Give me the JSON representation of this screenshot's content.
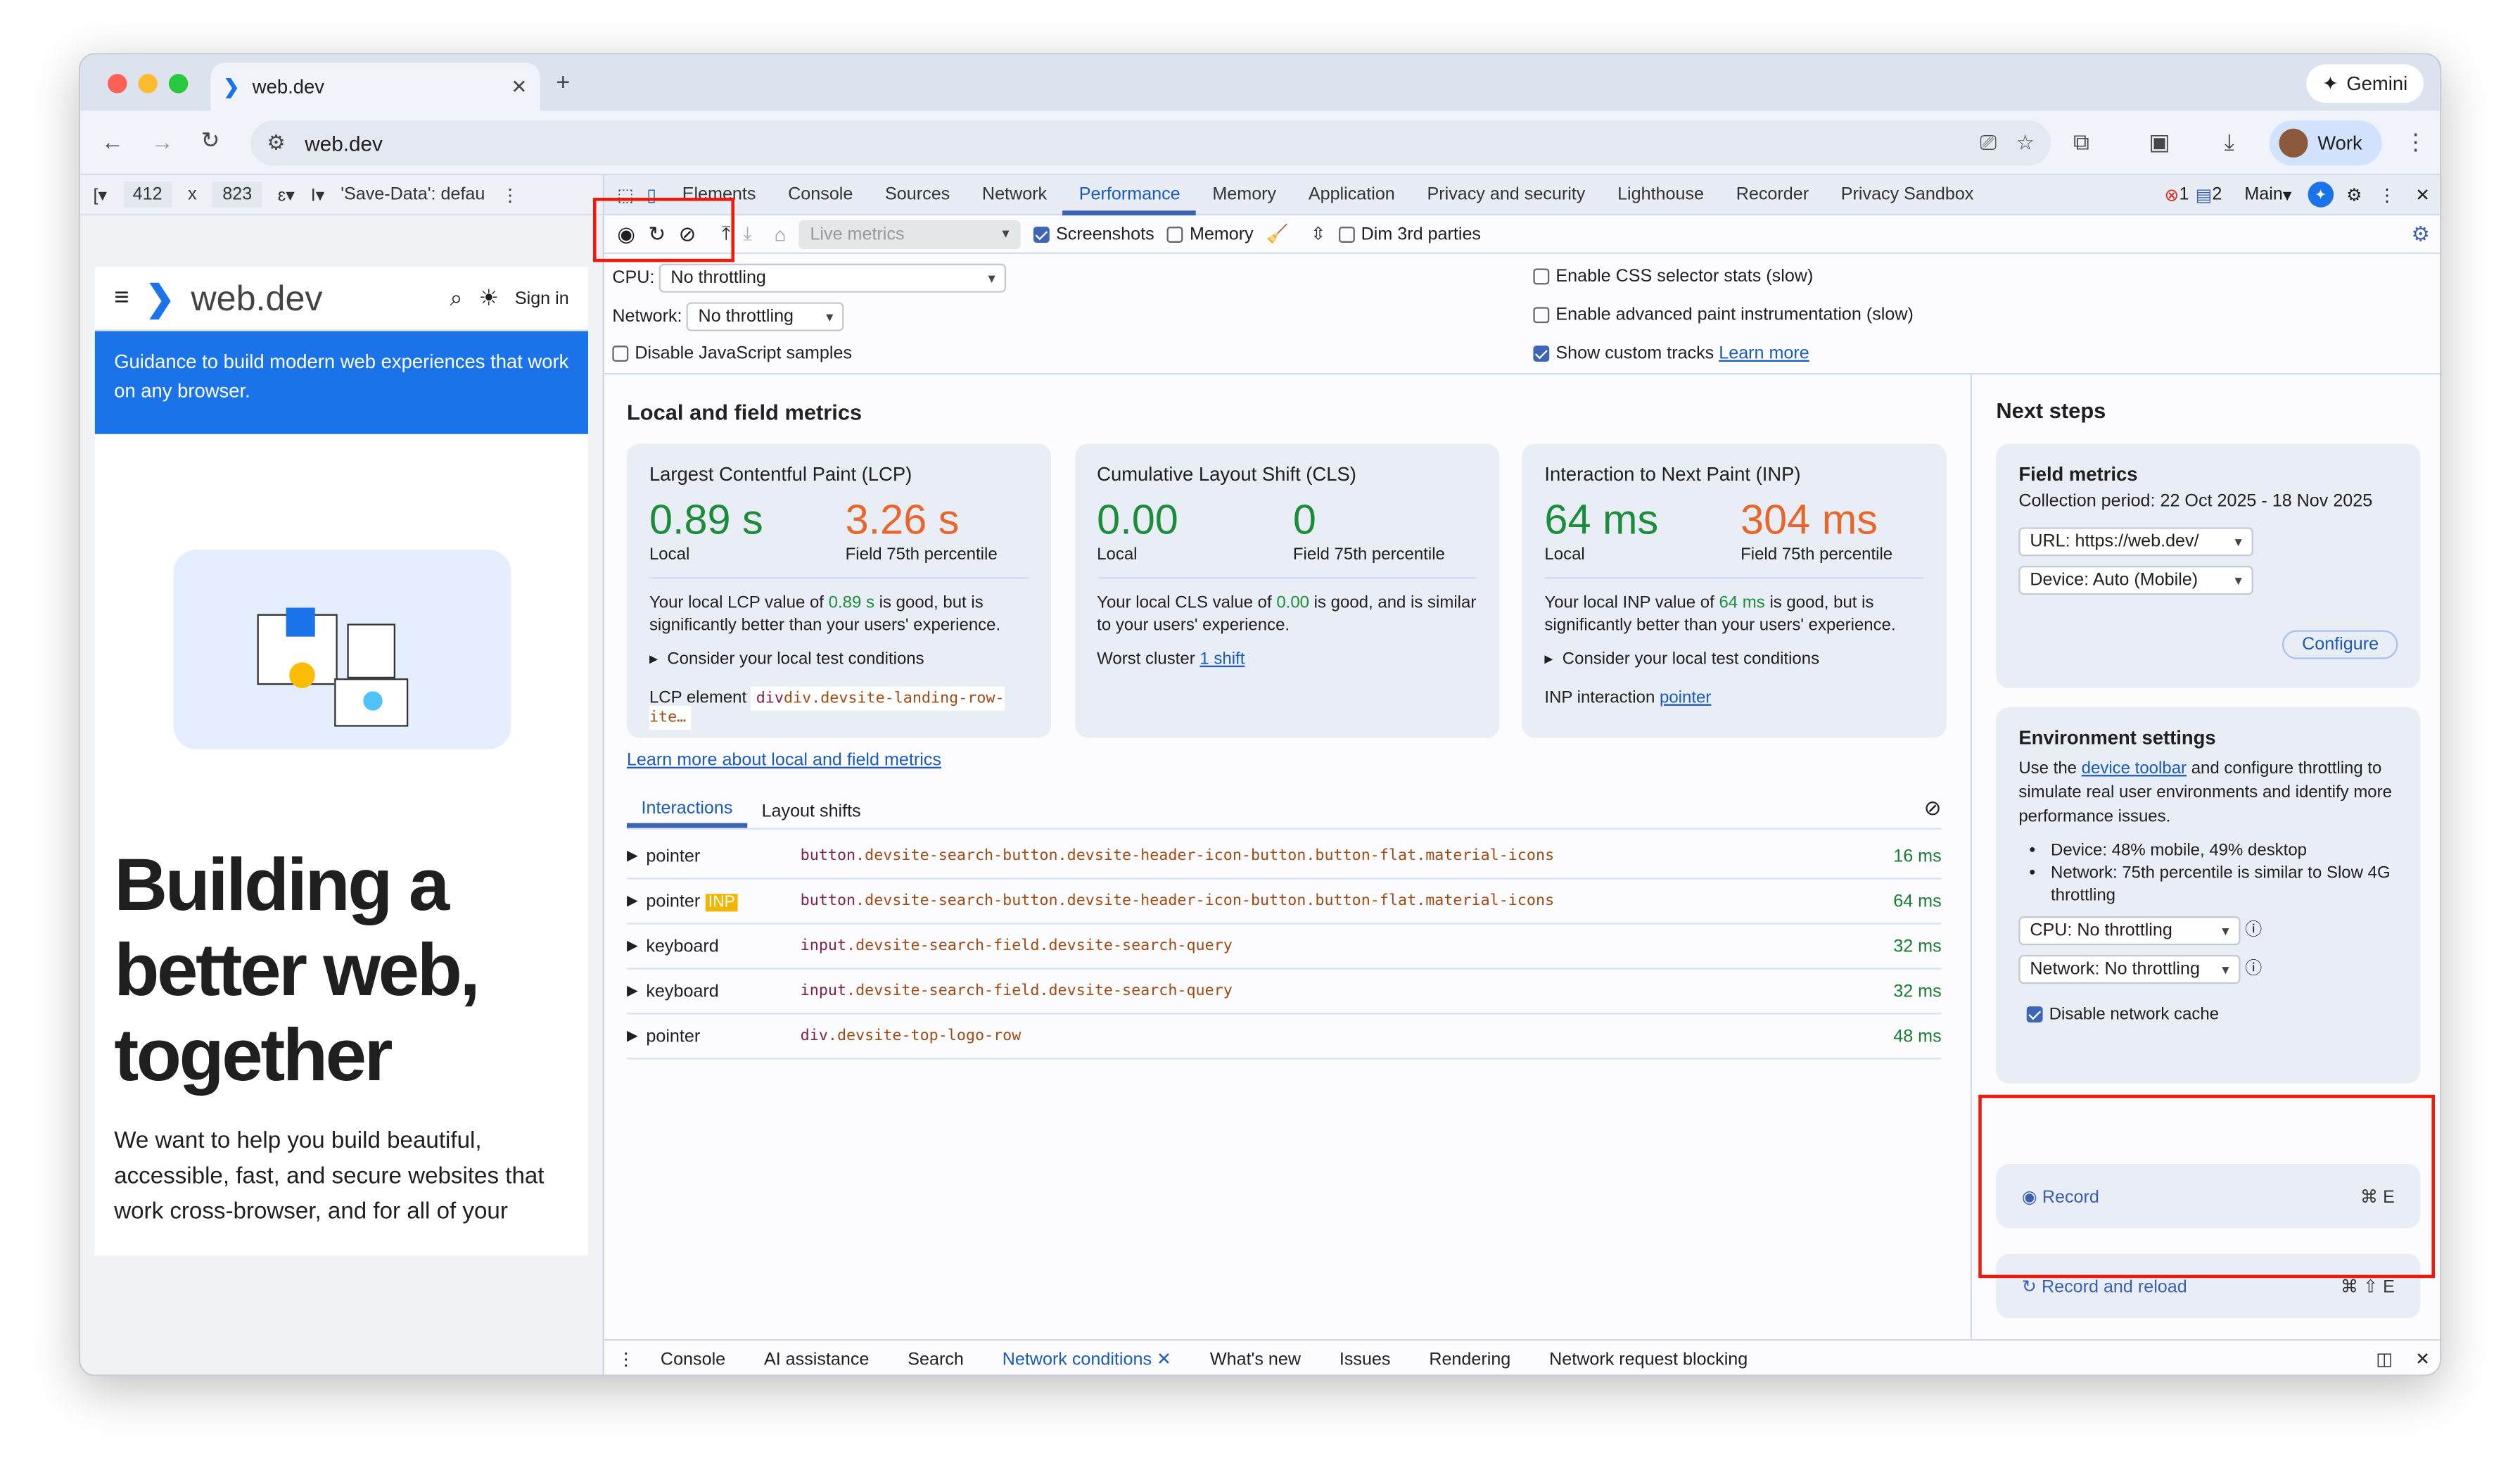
{
  "browser": {
    "tab_title": "web.dev",
    "gemini_label": "Gemini",
    "url": "web.dev",
    "profile_label": "Work"
  },
  "device_toolbar": {
    "width": "412",
    "x": "x",
    "height": "823",
    "save_data": "'Save-Data': defau"
  },
  "devtools": {
    "tabs": [
      "Elements",
      "Console",
      "Sources",
      "Network",
      "Performance",
      "Memory",
      "Application",
      "Privacy and security",
      "Lighthouse",
      "Recorder",
      "Privacy Sandbox"
    ],
    "active_tab": "Performance",
    "errors": "1",
    "messages": "2",
    "context": "Main",
    "toolbar": {
      "live_metrics": "Live metrics",
      "screenshots": "Screenshots",
      "memory": "Memory",
      "dim_3rd": "Dim 3rd parties",
      "screenshots_checked": true,
      "memory_checked": false,
      "dim_checked": false
    },
    "settings": {
      "cpu_label": "CPU:",
      "cpu_value": "No throttling",
      "network_label": "Network:",
      "network_value": "No throttling",
      "disable_js": "Disable JavaScript samples",
      "css_stats": "Enable CSS selector stats (slow)",
      "paint": "Enable advanced paint instrumentation (slow)",
      "custom_tracks": "Show custom tracks",
      "learn_more": "Learn more"
    },
    "main": {
      "heading": "Local and field metrics",
      "cards": [
        {
          "title": "Largest Contentful Paint (LCP)",
          "local": "0.89 s",
          "field": "3.26 s",
          "local_label": "Local",
          "field_label": "Field 75th percentile",
          "desc_pre": "Your local LCP value of ",
          "desc_val": "0.89 s",
          "desc_post": " is good, but is significantly better than your users' experience.",
          "consider": "Consider your local test conditions",
          "extra_label": "LCP element",
          "extra_value": "div.devsite-landing-row-ite…"
        },
        {
          "title": "Cumulative Layout Shift (CLS)",
          "local": "0.00",
          "field": "0",
          "local_label": "Local",
          "field_label": "Field 75th percentile",
          "desc_pre": "Your local CLS value of ",
          "desc_val": "0.00",
          "desc_post": " is good, and is similar to your users' experience.",
          "extra_label": "Worst cluster",
          "extra_value": "1 shift"
        },
        {
          "title": "Interaction to Next Paint (INP)",
          "local": "64 ms",
          "field": "304 ms",
          "local_label": "Local",
          "field_label": "Field 75th percentile",
          "desc_pre": "Your local INP value of ",
          "desc_val": "64 ms",
          "desc_post": " is good, but is significantly better than your users' experience.",
          "consider": "Consider your local test conditions",
          "extra_label": "INP interaction",
          "extra_value": "pointer"
        }
      ],
      "learn_link": "Learn more about local and field metrics",
      "subtabs": [
        "Interactions",
        "Layout shifts"
      ],
      "interactions": [
        {
          "type": "pointer",
          "tag": "button",
          "selector": ".devsite-search-button.devsite-header-icon-button.button-flat.material-icons",
          "time": "16 ms",
          "badge": ""
        },
        {
          "type": "pointer",
          "tag": "button",
          "selector": ".devsite-search-button.devsite-header-icon-button.button-flat.material-icons",
          "time": "64 ms",
          "badge": "INP"
        },
        {
          "type": "keyboard",
          "tag": "input",
          "selector": ".devsite-search-field.devsite-search-query",
          "time": "32 ms",
          "badge": ""
        },
        {
          "type": "keyboard",
          "tag": "input",
          "selector": ".devsite-search-field.devsite-search-query",
          "time": "32 ms",
          "badge": ""
        },
        {
          "type": "pointer",
          "tag": "div",
          "selector": ".devsite-top-logo-row",
          "time": "48 ms",
          "badge": ""
        }
      ]
    },
    "next_steps": {
      "heading": "Next steps",
      "field": {
        "title": "Field metrics",
        "period": "Collection period: 22 Oct 2025 - 18 Nov 2025",
        "url": "URL: https://web.dev/",
        "device": "Device: Auto (Mobile)",
        "configure": "Configure"
      },
      "env": {
        "title": "Environment settings",
        "desc_pre": "Use the ",
        "desc_link": "device toolbar",
        "desc_post": " and configure throttling to simulate real user environments and identify more performance issues.",
        "bullets": [
          "Device: 48% mobile, 49% desktop",
          "Network: 75th percentile is similar to Slow 4G throttling"
        ],
        "cpu": "CPU: No throttling",
        "network": "Network: No throttling",
        "cache": "Disable network cache"
      },
      "record": "Record",
      "record_key": "⌘ E",
      "reload": "Record and reload",
      "reload_key": "⌘ ⇧ E"
    },
    "drawer": [
      "Console",
      "AI assistance",
      "Search",
      "Network conditions",
      "What's new",
      "Issues",
      "Rendering",
      "Network request blocking"
    ],
    "drawer_active": "Network conditions"
  },
  "page": {
    "logo": "web.dev",
    "sign_in": "Sign in",
    "banner": "Guidance to build modern web experiences that work on any browser.",
    "hero": "Building a better web, together",
    "body": "We want to help you build beautiful, accessible, fast, and secure websites that work cross-browser, and for all of your"
  },
  "colors": {
    "good": "#1b8d3a",
    "needs_improvement": "#e8662a",
    "accent": "#1a5bb8",
    "highlight": "#f01a0a",
    "banner": "#1a73e8"
  }
}
